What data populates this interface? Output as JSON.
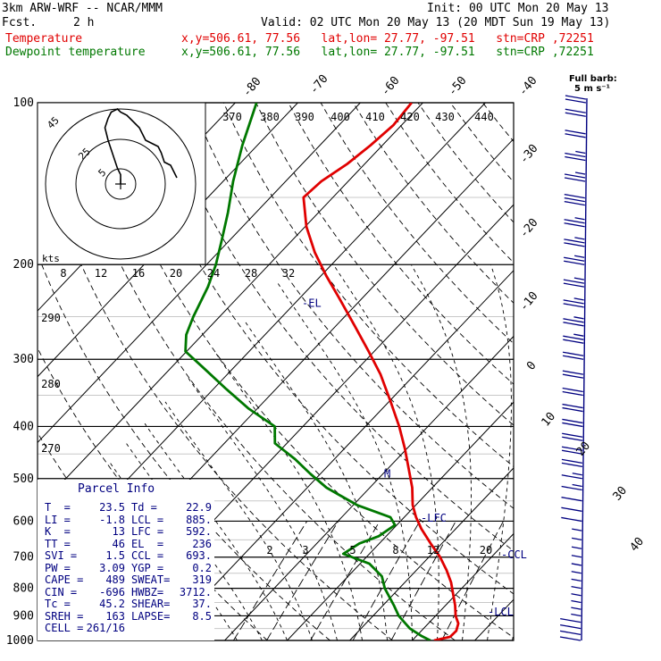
{
  "header": {
    "model": "3km ARW-WRF -- NCAR/MMM",
    "fcst_label": "Fcst.",
    "fcst_value": "2 h",
    "init": "Init: 00 UTC Mon 20 May 13",
    "valid": "Valid: 02 UTC Mon 20 May 13 (20 MDT Sun 19 May 13)",
    "temp_legend": "Temperature",
    "temp_info": "x,y=506.61, 77.56   lat,lon= 27.77, -97.51   stn=CRP ,72251",
    "dew_legend": "Dewpoint temperature",
    "dew_info": "x,y=506.61, 77.56   lat,lon= 27.77, -97.51   stn=CRP ,72251",
    "color_temp": "#e00000",
    "color_dew": "#007800"
  },
  "barb_legend": {
    "title": "Full barb:",
    "value": "5 m s⁻¹",
    "color": "#000080"
  },
  "chart_data": {
    "type": "line",
    "kind": "skew-T log-p sounding",
    "y_scale": "log",
    "ylabel": "",
    "pressure_levels": [
      100,
      200,
      300,
      400,
      500,
      600,
      700,
      800,
      900,
      1000
    ],
    "ylim": [
      1000,
      100
    ],
    "isotherm_labels": [
      -80,
      -70,
      -60,
      -50,
      -40,
      -30,
      -20,
      -10,
      0,
      10,
      20,
      30,
      40
    ],
    "theta_labels": [
      370,
      380,
      390,
      400,
      410,
      420,
      430,
      440,
      290,
      280,
      270
    ],
    "mixing_ratio_labels": [
      "2",
      "3",
      "5",
      "8",
      "12",
      "20"
    ],
    "series": [
      {
        "name": "Temperature",
        "color": "#e00000",
        "p": [
          1000,
          985,
          960,
          930,
          900,
          860,
          820,
          780,
          740,
          700,
          660,
          620,
          590,
          560,
          520,
          480,
          440,
          400,
          360,
          320,
          290,
          260,
          230,
          210,
          190,
          170,
          150,
          140,
          130,
          120,
          110,
          100
        ],
        "t": [
          23.5,
          25.5,
          25.6,
          24.8,
          23.2,
          21.5,
          19.5,
          17.4,
          14.8,
          11.8,
          8.2,
          4.5,
          1.9,
          -0.5,
          -3.2,
          -6.6,
          -10.3,
          -14.6,
          -19.7,
          -25.5,
          -30.9,
          -37.0,
          -43.9,
          -49.1,
          -54.5,
          -59.8,
          -64.7,
          -64.3,
          -62.8,
          -61.9,
          -61.3,
          -61.8
        ]
      },
      {
        "name": "Dewpoint temperature",
        "color": "#007800",
        "p": [
          1000,
          980,
          950,
          900,
          860,
          800,
          760,
          720,
          690,
          660,
          640,
          610,
          590,
          560,
          520,
          490,
          460,
          430,
          400,
          370,
          340,
          310,
          290,
          270,
          250,
          220,
          200,
          180,
          160,
          140,
          120,
          100
        ],
        "td": [
          22.9,
          20.7,
          17.8,
          14.1,
          11.7,
          7.7,
          5.4,
          1.5,
          -4.2,
          -3.2,
          -1.2,
          -0.3,
          -2.2,
          -9.4,
          -16.9,
          -21.6,
          -26.3,
          -31.9,
          -34.5,
          -41.5,
          -48.1,
          -55.1,
          -60.2,
          -62.6,
          -64.2,
          -66.4,
          -68.5,
          -71.3,
          -74.5,
          -78.4,
          -82.4,
          -86.6
        ]
      }
    ],
    "annotations": [
      {
        "text": "-EL",
        "p": 236
      },
      {
        "text": "-LFC",
        "p": 592
      },
      {
        "text": "-CCL",
        "p": 693
      },
      {
        "text": "-LCL",
        "p": 885
      },
      {
        "text": "M",
        "p": 490
      }
    ],
    "hodograph": {
      "ring_labels": [
        "5",
        "25",
        "45"
      ],
      "speed_axis_label": "kts",
      "speed_ticks": [
        "8",
        "12",
        "16",
        "20",
        "24",
        "28",
        "32"
      ],
      "u": [
        0,
        0,
        -1,
        -2,
        -3,
        -4,
        -5,
        -4,
        -3,
        -1,
        0,
        2,
        3,
        4,
        6,
        7,
        8,
        10,
        12,
        13,
        14,
        16,
        17,
        18
      ],
      "v": [
        0,
        3,
        5,
        8,
        11,
        14,
        18,
        21,
        23,
        24,
        23,
        22,
        21,
        20,
        18,
        16,
        14,
        13,
        12,
        10,
        7,
        6,
        4,
        2
      ]
    },
    "wind_barbs": {
      "p": [
        1000,
        975,
        950,
        925,
        900,
        875,
        850,
        825,
        800,
        775,
        750,
        725,
        700,
        675,
        650,
        625,
        600,
        575,
        550,
        525,
        500,
        475,
        450,
        425,
        400,
        375,
        350,
        325,
        300,
        280,
        260,
        240,
        220,
        200,
        185,
        170,
        155,
        140,
        128,
        116,
        106,
        100
      ],
      "speed_ms": [
        6,
        6,
        5,
        5,
        4,
        4,
        4,
        4,
        3,
        3,
        3,
        3,
        3,
        3,
        4,
        4,
        5,
        6,
        7,
        8,
        9,
        10,
        10,
        11,
        11,
        12,
        12,
        12,
        12,
        13,
        13,
        13,
        14,
        14,
        14,
        14,
        15,
        14,
        13,
        12,
        12,
        12
      ]
    }
  },
  "parcel_info": {
    "title": "Parcel Info",
    "rows": [
      {
        "k1": "T  =",
        "v1": "23.5",
        "k2": "Td =",
        "v2": "22.9"
      },
      {
        "k1": "LI =",
        "v1": "-1.8",
        "k2": "LCL =",
        "v2": "885."
      },
      {
        "k1": "K  =",
        "v1": "13",
        "k2": "LFC =",
        "v2": "592."
      },
      {
        "k1": "TT =",
        "v1": "46",
        "k2": "EL  =",
        "v2": "236"
      },
      {
        "k1": "SVI =",
        "v1": "1.5",
        "k2": "CCL =",
        "v2": "693."
      },
      {
        "k1": "PW =",
        "v1": "3.09",
        "k2": "YGP =",
        "v2": "0.2"
      },
      {
        "k1": "CAPE =",
        "v1": "489",
        "k2": "SWEAT=",
        "v2": "319"
      },
      {
        "k1": "CIN =",
        "v1": "-696",
        "k2": "HWBZ=",
        "v2": "3712."
      },
      {
        "k1": "Tc =",
        "v1": "45.2",
        "k2": "SHEAR=",
        "v2": "37."
      },
      {
        "k1": "SREH =",
        "v1": "163",
        "k2": "LAPSE=",
        "v2": "8.5"
      },
      {
        "k1": "CELL =",
        "v1": "261/16",
        "k2": "",
        "v2": ""
      }
    ]
  }
}
